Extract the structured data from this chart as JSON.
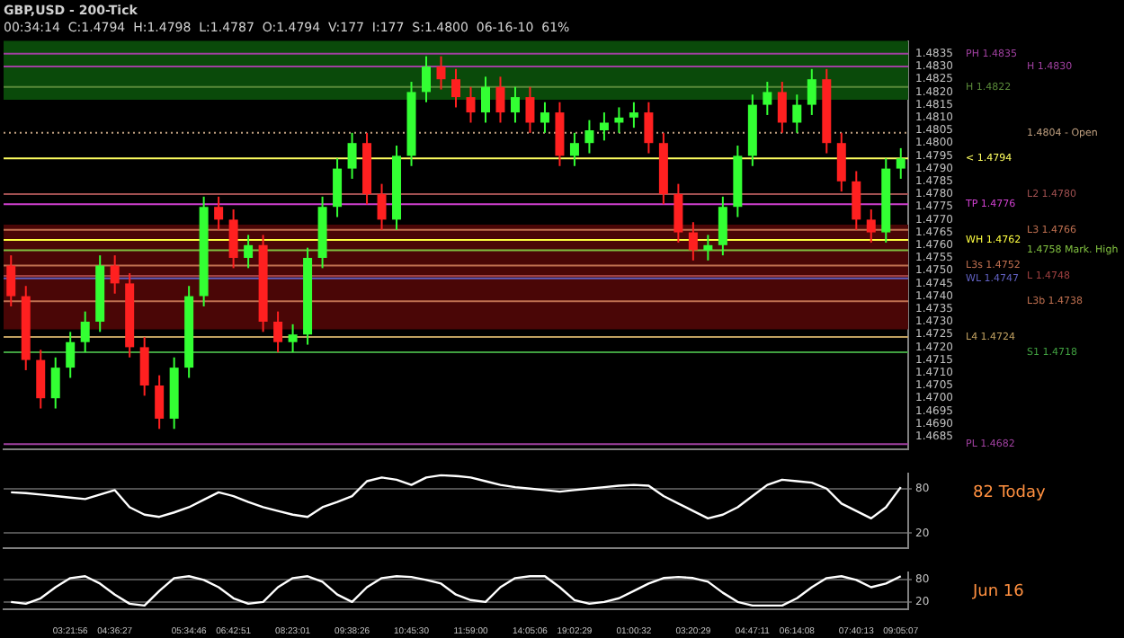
{
  "chart_data": [
    {
      "type": "candlestick",
      "title": "GBP,USD - 200-Tick",
      "subtitle": "00:34:14  C:1.4794  H:1.4798  L:1.4787  O:1.4794  V:177  I:177  S:1.4800  06-16-10  61%",
      "ohlc": [
        [
          1.4752,
          1.4756,
          1.4736,
          1.474
        ],
        [
          1.474,
          1.4744,
          1.4711,
          1.4715
        ],
        [
          1.4715,
          1.4719,
          1.4696,
          1.47
        ],
        [
          1.47,
          1.4716,
          1.4696,
          1.4712
        ],
        [
          1.4712,
          1.4726,
          1.4708,
          1.4722
        ],
        [
          1.4722,
          1.4734,
          1.4718,
          1.473
        ],
        [
          1.473,
          1.4756,
          1.4726,
          1.4752
        ],
        [
          1.4752,
          1.4756,
          1.4741,
          1.4745
        ],
        [
          1.4745,
          1.4749,
          1.4716,
          1.472
        ],
        [
          1.472,
          1.4724,
          1.4701,
          1.4705
        ],
        [
          1.4705,
          1.4709,
          1.4688,
          1.4692
        ],
        [
          1.4692,
          1.4716,
          1.4688,
          1.4712
        ],
        [
          1.4712,
          1.4744,
          1.4708,
          1.474
        ],
        [
          1.474,
          1.4779,
          1.4736,
          1.4775
        ],
        [
          1.4775,
          1.4779,
          1.4766,
          1.477
        ],
        [
          1.477,
          1.4774,
          1.4751,
          1.4755
        ],
        [
          1.4755,
          1.4764,
          1.4751,
          1.476
        ],
        [
          1.476,
          1.4764,
          1.4726,
          1.473
        ],
        [
          1.473,
          1.4734,
          1.4718,
          1.4722
        ],
        [
          1.4722,
          1.4729,
          1.4718,
          1.4725
        ],
        [
          1.4725,
          1.4759,
          1.4721,
          1.4755
        ],
        [
          1.4755,
          1.4779,
          1.4751,
          1.4775
        ],
        [
          1.4775,
          1.4794,
          1.4771,
          1.479
        ],
        [
          1.479,
          1.4804,
          1.4786,
          1.48
        ],
        [
          1.48,
          1.4804,
          1.4776,
          1.478
        ],
        [
          1.478,
          1.4784,
          1.4766,
          1.477
        ],
        [
          1.477,
          1.4799,
          1.4766,
          1.4795
        ],
        [
          1.4795,
          1.4824,
          1.4791,
          1.482
        ],
        [
          1.482,
          1.4834,
          1.4816,
          1.483
        ],
        [
          1.483,
          1.4834,
          1.4821,
          1.4825
        ],
        [
          1.4825,
          1.4829,
          1.4814,
          1.4818
        ],
        [
          1.4818,
          1.4822,
          1.4808,
          1.4812
        ],
        [
          1.4812,
          1.4826,
          1.4808,
          1.4822
        ],
        [
          1.4822,
          1.4826,
          1.4808,
          1.4812
        ],
        [
          1.4812,
          1.4822,
          1.4808,
          1.4818
        ],
        [
          1.4818,
          1.4822,
          1.4804,
          1.4808
        ],
        [
          1.4808,
          1.4816,
          1.4804,
          1.4812
        ],
        [
          1.4812,
          1.4816,
          1.4791,
          1.4795
        ],
        [
          1.4795,
          1.4804,
          1.4791,
          1.48
        ],
        [
          1.48,
          1.4809,
          1.4796,
          1.4805
        ],
        [
          1.4805,
          1.4812,
          1.4801,
          1.4808
        ],
        [
          1.4808,
          1.4814,
          1.4804,
          1.481
        ],
        [
          1.481,
          1.4816,
          1.4806,
          1.4812
        ],
        [
          1.4812,
          1.4816,
          1.4796,
          1.48
        ],
        [
          1.48,
          1.4804,
          1.4776,
          1.478
        ],
        [
          1.478,
          1.4784,
          1.4761,
          1.4765
        ],
        [
          1.4765,
          1.4769,
          1.4754,
          1.4758
        ],
        [
          1.4758,
          1.4764,
          1.4754,
          1.476
        ],
        [
          1.476,
          1.4779,
          1.4756,
          1.4775
        ],
        [
          1.4775,
          1.4799,
          1.4771,
          1.4795
        ],
        [
          1.4795,
          1.4819,
          1.4791,
          1.4815
        ],
        [
          1.4815,
          1.4824,
          1.4811,
          1.482
        ],
        [
          1.482,
          1.4824,
          1.4804,
          1.4808
        ],
        [
          1.4808,
          1.4819,
          1.4804,
          1.4815
        ],
        [
          1.4815,
          1.4829,
          1.4811,
          1.4825
        ],
        [
          1.4825,
          1.4829,
          1.4796,
          1.48
        ],
        [
          1.48,
          1.4804,
          1.4781,
          1.4785
        ],
        [
          1.4785,
          1.4789,
          1.4766,
          1.477
        ],
        [
          1.477,
          1.4774,
          1.4761,
          1.4765
        ],
        [
          1.4765,
          1.4794,
          1.4761,
          1.479
        ],
        [
          1.479,
          1.4798,
          1.4786,
          1.4794
        ]
      ],
      "ylim": [
        1.468,
        1.484
      ],
      "yticks": [
        1.4685,
        {
          "value": 1.469,
          "label": "1.4690"
        },
        1.4695,
        {
          "value": 1.47,
          "label": "1.4700"
        },
        1.4705,
        {
          "value": 1.471,
          "label": "1.4710"
        },
        1.4715,
        {
          "value": 1.472,
          "label": "1.4720"
        },
        1.4725,
        {
          "value": 1.473,
          "label": "1.4730"
        },
        1.4735,
        {
          "value": 1.474,
          "label": "1.4740"
        },
        1.4745,
        {
          "value": 1.475,
          "label": "1.4750"
        },
        1.4755,
        {
          "value": 1.476,
          "label": "1.4760"
        },
        1.4765,
        {
          "value": 1.477,
          "label": "1.4770"
        },
        1.4775,
        {
          "value": 1.478,
          "label": "1.4780"
        },
        1.4785,
        {
          "value": 1.479,
          "label": "1.4790"
        },
        1.4795,
        {
          "value": 1.48,
          "label": "1.4800"
        },
        1.4805,
        {
          "value": 1.481,
          "label": "1.4810"
        },
        1.4815,
        {
          "value": 1.482,
          "label": "1.4820"
        },
        1.4825,
        {
          "value": 1.483,
          "label": "1.4830"
        },
        1.4835
      ],
      "tick_labels": "y",
      "bands": [
        {
          "axis": "y",
          "from": 1.4817,
          "to": 1.484,
          "color": "#0a4a0a"
        },
        {
          "axis": "y",
          "from": 1.4727,
          "to": 1.4768,
          "color": "#4a0606"
        }
      ],
      "ref_lines": [
        {
          "axis": "y",
          "value": 1.4835,
          "label": "PH 1.4835",
          "color": "#a040a0"
        },
        {
          "axis": "y",
          "value": 1.483,
          "label": "H 1.4830",
          "color": "#a040a0"
        },
        {
          "axis": "y",
          "value": 1.4822,
          "label": "H 1.4822",
          "color": "#5a8a3a"
        },
        {
          "axis": "y",
          "value": 1.4804,
          "label": "1.4804 - Open",
          "color": "#c0a080",
          "line_style": "dotted"
        },
        {
          "axis": "y",
          "value": 1.4794,
          "label": "< 1.4794",
          "color": "#ffff60"
        },
        {
          "axis": "y",
          "value": 1.478,
          "label": "L2 1.4780",
          "color": "#a05050"
        },
        {
          "axis": "y",
          "value": 1.4776,
          "label": "TP 1.4776",
          "color": "#d040d0"
        },
        {
          "axis": "y",
          "value": 1.4766,
          "label": "L3 1.4766",
          "color": "#c07050"
        },
        {
          "axis": "y",
          "value": 1.4762,
          "label": "WH 1.4762",
          "color": "#ffff40"
        },
        {
          "axis": "y",
          "value": 1.4758,
          "label": "1.4758 Mark. High",
          "color": "#80c040"
        },
        {
          "axis": "y",
          "value": 1.4752,
          "label": "L3s 1.4752",
          "color": "#c07050"
        },
        {
          "axis": "y",
          "value": 1.4748,
          "label": "L 1.4748",
          "color": "#a04040"
        },
        {
          "axis": "y",
          "value": 1.4747,
          "label": "WL 1.4747",
          "color": "#6060c0"
        },
        {
          "axis": "y",
          "value": 1.4738,
          "label": "L3b 1.4738",
          "color": "#c07050"
        },
        {
          "axis": "y",
          "value": 1.4724,
          "label": "L4 1.4724",
          "color": "#c0a060"
        },
        {
          "axis": "y",
          "value": 1.4718,
          "label": "S1 1.4718",
          "color": "#40a040"
        },
        {
          "axis": "y",
          "value": 1.4682,
          "label": "PL 1.4682",
          "color": "#a040a0"
        }
      ]
    },
    {
      "type": "line",
      "series": [
        {
          "color": "#ffffff",
          "values": [
            75,
            74,
            72,
            70,
            68,
            66,
            72,
            78,
            55,
            45,
            42,
            48,
            55,
            65,
            75,
            70,
            62,
            55,
            50,
            45,
            42,
            55,
            62,
            70,
            90,
            95,
            92,
            85,
            95,
            98,
            97,
            95,
            90,
            85,
            82,
            80,
            78,
            76,
            78,
            80,
            82,
            84,
            85,
            84,
            70,
            60,
            50,
            40,
            45,
            55,
            70,
            85,
            92,
            90,
            88,
            80,
            60,
            50,
            40,
            55,
            82
          ]
        }
      ],
      "ylim": [
        0,
        100
      ],
      "yticks": [
        20,
        80
      ],
      "grid": "y",
      "tick_labels": "y",
      "annotations": [
        "82 Today"
      ]
    },
    {
      "type": "line",
      "categories": [
        null,
        null,
        null,
        null,
        "03:21:56",
        null,
        null,
        "04:36:27",
        null,
        null,
        null,
        null,
        "05:34:46",
        null,
        null,
        "06:42:51",
        null,
        null,
        null,
        "08:23:01",
        null,
        null,
        null,
        "09:38:26",
        null,
        null,
        null,
        "10:45:30",
        null,
        null,
        null,
        "11:59:00",
        null,
        null,
        null,
        "14:05:06",
        null,
        null,
        "19:02:29",
        null,
        null,
        null,
        "01:00:32",
        null,
        null,
        null,
        "03:20:29",
        null,
        null,
        null,
        "04:47:11",
        null,
        null,
        "06:14:08",
        null,
        null,
        null,
        "07:40:13",
        null,
        null,
        "09:05:07"
      ],
      "series": [
        {
          "color": "#ffffff",
          "values": [
            20,
            15,
            30,
            60,
            85,
            90,
            70,
            40,
            15,
            10,
            50,
            85,
            90,
            80,
            60,
            30,
            15,
            20,
            60,
            85,
            90,
            75,
            40,
            20,
            60,
            85,
            90,
            88,
            80,
            70,
            40,
            25,
            20,
            60,
            85,
            90,
            90,
            60,
            25,
            15,
            20,
            30,
            50,
            70,
            85,
            88,
            85,
            75,
            45,
            20,
            10,
            10,
            10,
            30,
            60,
            85,
            90,
            80,
            60,
            70,
            90
          ]
        }
      ],
      "ylim": [
        0,
        100
      ],
      "yticks": [
        20,
        80
      ],
      "grid": "y",
      "annotations": [
        "Jun 16"
      ]
    }
  ]
}
